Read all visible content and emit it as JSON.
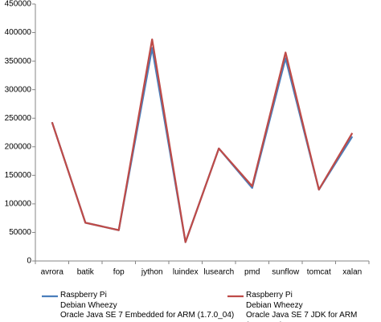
{
  "chart_data": {
    "type": "line",
    "categories": [
      "avrora",
      "batik",
      "fop",
      "jython",
      "luindex",
      "lusearch",
      "pmd",
      "sunflow",
      "tomcat",
      "xalan"
    ],
    "series": [
      {
        "name": "Raspberry Pi\nDebian Wheezy\nOracle Java SE 7 Embedded for ARM (1.7.0_04)",
        "color": "#4a7ebb",
        "values": [
          243000,
          67000,
          54000,
          373000,
          33000,
          197000,
          128000,
          355000,
          125000,
          218000
        ]
      },
      {
        "name": "Raspberry Pi\nDebian Wheezy\nOracle Java SE 7 JDK for ARM (1.7.0_06)",
        "color": "#be4b48",
        "values": [
          243000,
          67000,
          54000,
          388000,
          33000,
          197000,
          131000,
          365000,
          125000,
          224000
        ]
      }
    ],
    "ylim": [
      0,
      450000
    ],
    "yticks": [
      0,
      50000,
      100000,
      150000,
      200000,
      250000,
      300000,
      350000,
      400000,
      450000
    ],
    "grid": false,
    "legend": "bottom"
  }
}
